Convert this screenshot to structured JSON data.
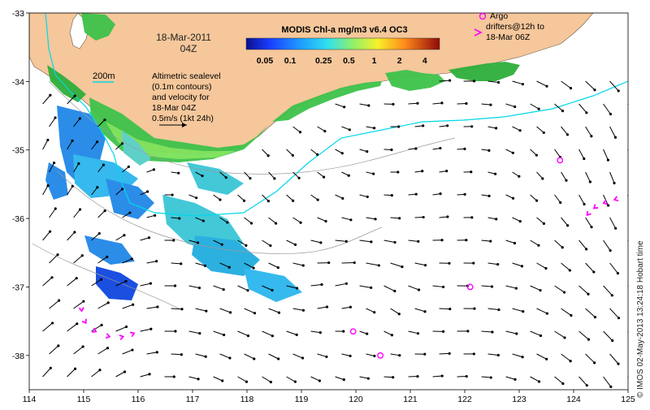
{
  "map": {
    "date_label": "18-Mar-2011",
    "time_label": "04Z",
    "legend_title": "MODIS Chl-a mg/m3 v6.4 OC3",
    "colorbar_ticks": [
      "0.05",
      "0.1",
      "0.25",
      "0.5",
      "1",
      "2",
      "4"
    ],
    "colorbar_ticks_values": [
      0.05,
      0.1,
      0.25,
      0.5,
      1,
      2,
      4
    ],
    "colorbar_range": [
      0.03,
      6
    ],
    "isobath_label": "200m",
    "sealevel_note": [
      "Altimetric sealevel",
      "(0.1m contours)",
      "and velocity for",
      "18-Mar 04Z",
      "0.5m/s (1kt 24h)"
    ],
    "argo_note": [
      "Argo",
      "drifters@12h to",
      "18-Mar 06Z"
    ],
    "credit": "© IMOS 02-May-2013 13:24:18 Hobart time",
    "x_ticks": [
      "114",
      "115",
      "116",
      "117",
      "118",
      "119",
      "120",
      "121",
      "122",
      "123",
      "124",
      "125"
    ],
    "x_tick_values": [
      114,
      115,
      116,
      117,
      118,
      119,
      120,
      121,
      122,
      123,
      124,
      125
    ],
    "y_ticks": [
      "-33",
      "-34",
      "-35",
      "-36",
      "-37",
      "-38"
    ],
    "y_tick_values": [
      -33,
      -34,
      -35,
      -36,
      -37,
      -38
    ],
    "lon_range": [
      114,
      125
    ],
    "lat_range": [
      -38.5,
      -33
    ],
    "argo_floats": [
      {
        "lon": 123.75,
        "lat": -35.15
      },
      {
        "lon": 122.1,
        "lat": -37.0
      },
      {
        "lon": 119.95,
        "lat": -37.65
      },
      {
        "lon": 120.45,
        "lat": -38.0
      }
    ],
    "drifter_tracks": [
      [
        [
          114.95,
          -37.25
        ],
        [
          114.98,
          -37.45
        ],
        [
          115.1,
          -37.6
        ],
        [
          115.35,
          -37.7
        ],
        [
          115.6,
          -37.75
        ],
        [
          115.85,
          -37.7
        ],
        [
          116.0,
          -37.65
        ]
      ],
      [
        [
          124.85,
          -35.7
        ],
        [
          124.65,
          -35.75
        ],
        [
          124.45,
          -35.8
        ],
        [
          124.3,
          -35.9
        ],
        [
          124.2,
          -36.0
        ]
      ]
    ],
    "colors": {
      "land": "#f5c79b",
      "ocean": "#ffffff",
      "isobath": "#00d8e8",
      "magenta": "#ff00ff",
      "arrow": "#000000"
    }
  }
}
